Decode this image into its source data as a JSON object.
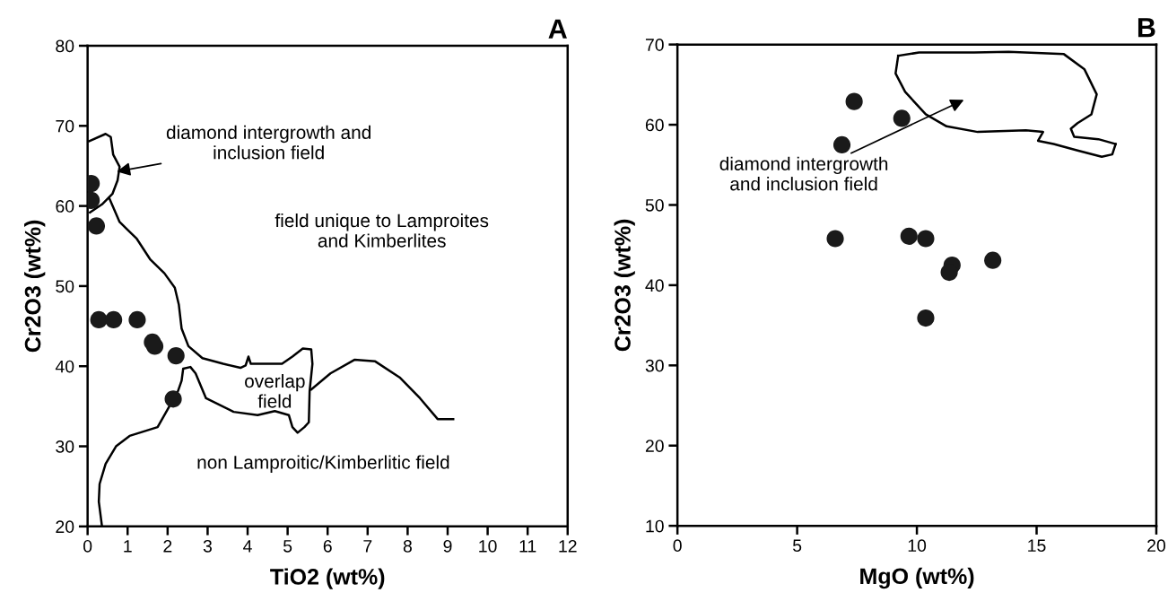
{
  "chart_data": [
    {
      "type": "scatter",
      "title": "A",
      "xlabel": "TiO2 (wt%)",
      "ylabel": "Cr2O3 (wt%)",
      "xlim": [
        0,
        12
      ],
      "ylim": [
        20,
        80
      ],
      "xticks": [
        0,
        1,
        2,
        3,
        4,
        5,
        6,
        7,
        8,
        9,
        10,
        11,
        12
      ],
      "yticks": [
        20,
        30,
        40,
        50,
        60,
        70,
        80
      ],
      "series": [
        {
          "marker": "circle",
          "color": "#1a1a1a",
          "x": [
            0.09,
            0.09,
            0.22,
            0.28,
            0.65,
            1.24,
            1.62,
            1.68,
            2.21,
            2.14
          ],
          "values": [
            62.8,
            60.7,
            57.5,
            45.8,
            45.8,
            45.8,
            43.0,
            42.5,
            41.3,
            35.9
          ]
        },
        {
          "type": "line",
          "marker": "none",
          "line_style": "solid",
          "color": "#000000",
          "x": [
            0.04,
            0.45,
            0.58,
            0.64,
            0.8,
            0.75,
            0.62,
            0.36,
            0.06
          ],
          "values": [
            68.1,
            69.0,
            68.6,
            66.4,
            64.9,
            63.2,
            61.5,
            60.2,
            59.2
          ]
        },
        {
          "type": "line",
          "marker": "none",
          "line_style": "solid",
          "color": "#000000",
          "x": [
            0.54,
            0.8,
            1.23,
            1.57,
            1.92,
            2.18,
            2.28,
            2.35,
            2.52,
            2.87,
            3.39,
            3.82,
            3.95,
            4.02,
            4.08,
            4.86,
            5.12,
            5.38,
            5.59,
            5.62,
            5.55,
            5.53,
            5.42,
            5.25,
            5.12,
            5.03,
            4.68,
            4.25,
            3.65,
            2.96,
            2.7,
            2.57,
            2.39,
            2.35,
            2.26,
            2.01,
            1.75,
            1.05,
            0.71,
            0.45,
            0.3,
            0.28,
            0.36
          ],
          "values": [
            61.0,
            58.0,
            55.9,
            53.3,
            51.6,
            49.8,
            47.7,
            44.7,
            42.5,
            41.0,
            40.3,
            39.8,
            40.1,
            41.2,
            40.3,
            40.3,
            41.2,
            42.2,
            42.1,
            40.3,
            36.9,
            33.0,
            32.4,
            31.7,
            32.4,
            33.9,
            34.4,
            33.9,
            34.3,
            36.0,
            39.1,
            39.9,
            39.7,
            38.2,
            36.9,
            34.7,
            32.4,
            31.3,
            30.0,
            27.8,
            25.3,
            23.1,
            20.0
          ]
        },
        {
          "type": "line",
          "marker": "none",
          "line_style": "solid",
          "color": "#000000",
          "x": [
            5.59,
            6.07,
            6.67,
            7.19,
            7.8,
            8.31,
            8.75,
            9.14
          ],
          "values": [
            37.1,
            39.1,
            40.8,
            40.6,
            38.6,
            36.0,
            33.4,
            33.4
          ]
        }
      ],
      "annotations": [
        {
          "text": "diamond intergrowth and\ninclusion field",
          "x": 0.73,
          "y": 64.3
        },
        "field unique to Lamproites\nand Kimberlites",
        "overlap\nfield",
        "non Lamproitic/Kimberlitic field"
      ]
    },
    {
      "type": "scatter",
      "title": "B",
      "xlabel": "MgO (wt%)",
      "ylabel": "Cr2O3 (wt%)",
      "xlim": [
        0,
        20
      ],
      "ylim": [
        10,
        70
      ],
      "xticks": [
        0,
        5,
        10,
        15,
        20
      ],
      "yticks": [
        10,
        20,
        30,
        40,
        50,
        60,
        70
      ],
      "series": [
        {
          "marker": "circle",
          "color": "#1a1a1a",
          "x": [
            7.38,
            9.37,
            6.87,
            6.59,
            9.67,
            10.37,
            11.47,
            11.35,
            13.17,
            10.37
          ],
          "values": [
            62.9,
            60.8,
            57.5,
            45.8,
            46.1,
            45.8,
            42.5,
            41.6,
            43.1,
            35.9
          ]
        },
        {
          "type": "line",
          "marker": "none",
          "line_style": "solid",
          "color": "#000000",
          "x": [
            9.22,
            10.09,
            12.39,
            13.83,
            16.14,
            17.0,
            17.51,
            17.29,
            16.71,
            16.43,
            16.57,
            17.58,
            18.3
          ],
          "values": [
            68.6,
            69.0,
            69.0,
            69.1,
            68.8,
            66.9,
            63.8,
            61.3,
            60.2,
            59.5,
            58.5,
            58.2,
            57.6
          ]
        },
        {
          "type": "line",
          "marker": "none",
          "line_style": "solid",
          "color": "#000000",
          "x": [
            18.3,
            18.16,
            17.72,
            16.71,
            15.71,
            15.06,
            15.27,
            14.55,
            12.54,
            11.24,
            10.37,
            9.51,
            9.11,
            9.22
          ],
          "values": [
            57.6,
            56.3,
            56.0,
            56.8,
            57.6,
            58.0,
            59.1,
            59.3,
            59.1,
            59.8,
            61.3,
            64.1,
            66.4,
            68.6
          ]
        }
      ],
      "annotations": [
        "diamond intergrowth\nand inclusion field"
      ]
    }
  ]
}
